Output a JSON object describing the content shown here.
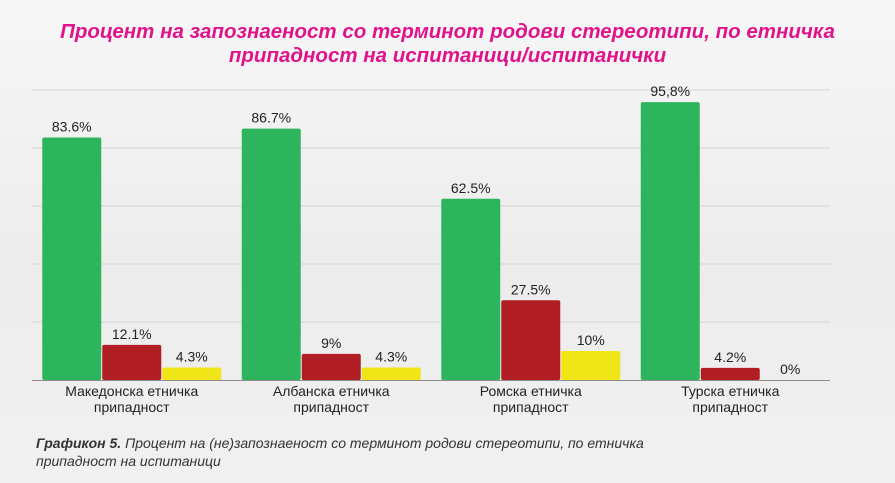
{
  "title_lines": [
    "Процент на запознаеност со терминот родови стереотипи, по етничка",
    "припадност на испитаници/испитанички"
  ],
  "caption": {
    "label": "Графикон 5.",
    "text_line1": " Процент на (не)запознаеност со терминот родови стереотипи, по етничка",
    "text_line2": "припадност на испитаници"
  },
  "colors": {
    "title": "#e0138c",
    "series": [
      "#2db55d",
      "#b01e23",
      "#f0e516"
    ],
    "gridline": "#d4d4d4",
    "axis": "#8c8c8c"
  },
  "chart_data": {
    "type": "bar",
    "categories": [
      [
        "Македонска етничка",
        "припадност"
      ],
      [
        "Албанска етничка",
        "припадност"
      ],
      [
        "Ромска етничка",
        "припадност"
      ],
      [
        "Турска етничка",
        "припадност"
      ]
    ],
    "series": [
      {
        "values": [
          83.6,
          86.7,
          62.5,
          95.8
        ],
        "labels": [
          "83.6%",
          "86.7%",
          "62.5%",
          "95,8%"
        ]
      },
      {
        "values": [
          12.1,
          9,
          27.5,
          4.2
        ],
        "labels": [
          "12.1%",
          "9%",
          "27.5%",
          "4.2%"
        ]
      },
      {
        "values": [
          4.3,
          4.3,
          10,
          0
        ],
        "labels": [
          "4.3%",
          "4.3%",
          "10%",
          "0%"
        ]
      }
    ],
    "ylim": [
      0,
      100
    ],
    "grid": true,
    "legend": "none"
  }
}
